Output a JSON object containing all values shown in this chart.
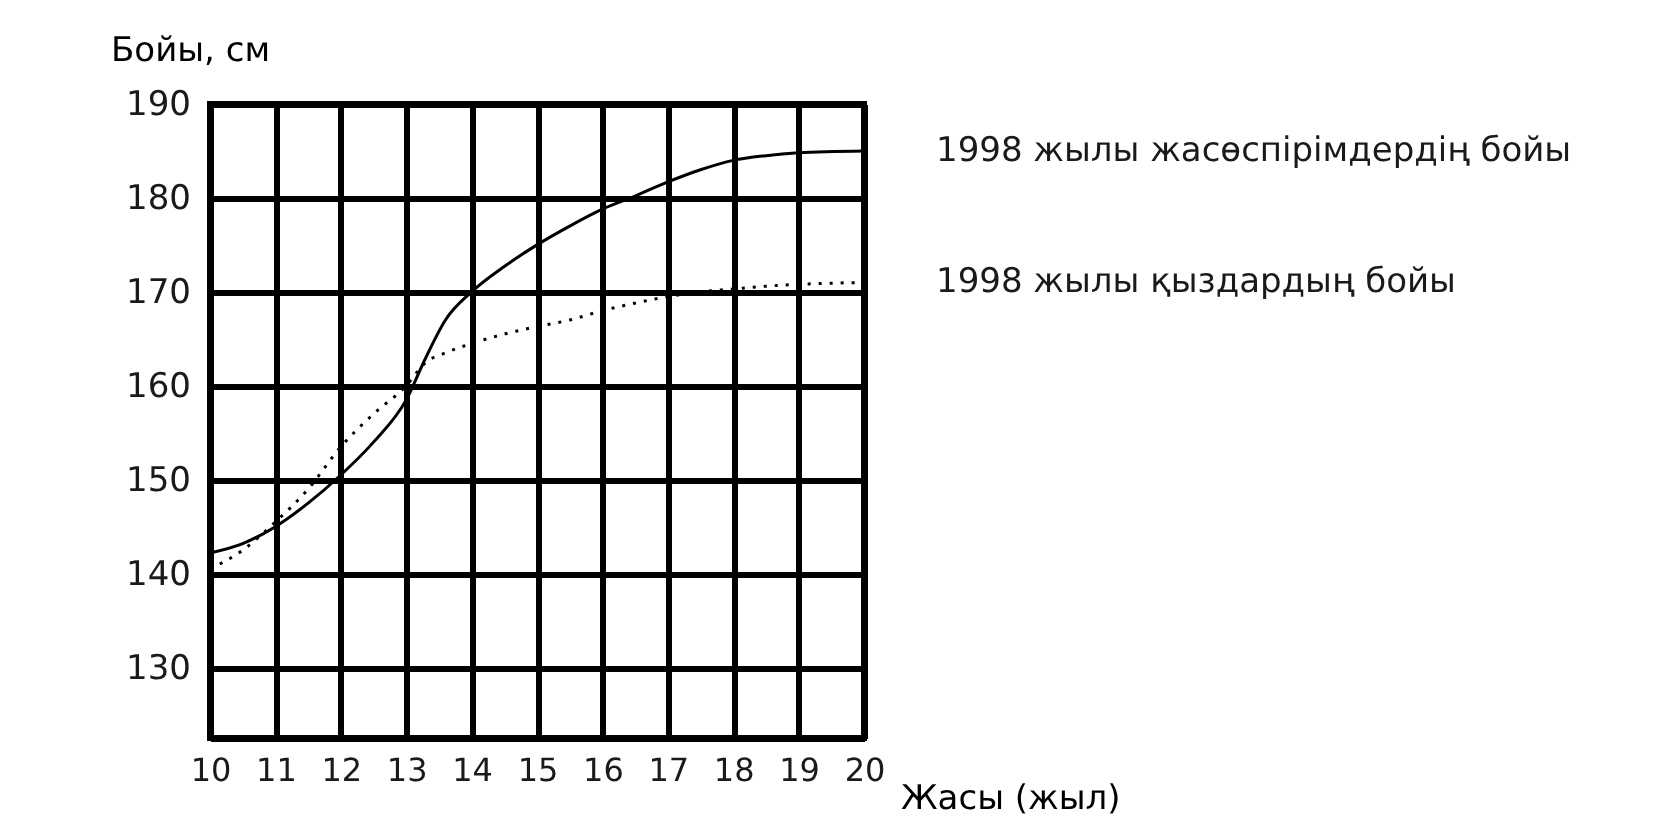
{
  "chart_data": {
    "type": "line",
    "xlabel": "Жасы (жыл)",
    "ylabel": "Бойы, см",
    "x": [
      10,
      10.5,
      11,
      11.5,
      12,
      12.5,
      13,
      13.3,
      13.6,
      14,
      14.5,
      15,
      15.5,
      16,
      16.5,
      17,
      17.5,
      18,
      18.5,
      19,
      20
    ],
    "series": [
      {
        "name": "1998 жылы жасөспірімдердің бойы",
        "color": "#000000",
        "line_style": "solid",
        "values": [
          142.2,
          143.2,
          145,
          147.5,
          150.5,
          154,
          158.5,
          163,
          167,
          170,
          172.7,
          175,
          177,
          178.8,
          180.2,
          181.7,
          183,
          184,
          184.5,
          184.8,
          185
        ]
      },
      {
        "name": "1998 жылы қыздардың бойы",
        "color": "#000000",
        "line_style": "dotted",
        "values": [
          140.5,
          142.5,
          145.5,
          149,
          153.5,
          157,
          160,
          162.5,
          163.5,
          164.5,
          165.5,
          166.3,
          167,
          168,
          168.8,
          169.5,
          170,
          170.3,
          170.6,
          170.8,
          171
        ]
      }
    ],
    "xlim": [
      10,
      20
    ],
    "xticks": [
      10,
      11,
      12,
      13,
      14,
      15,
      16,
      17,
      18,
      19,
      20
    ],
    "ylim": [
      122.5,
      190
    ],
    "yticks": [
      130,
      140,
      150,
      160,
      170,
      180,
      190
    ],
    "grid": true,
    "legend": false
  }
}
